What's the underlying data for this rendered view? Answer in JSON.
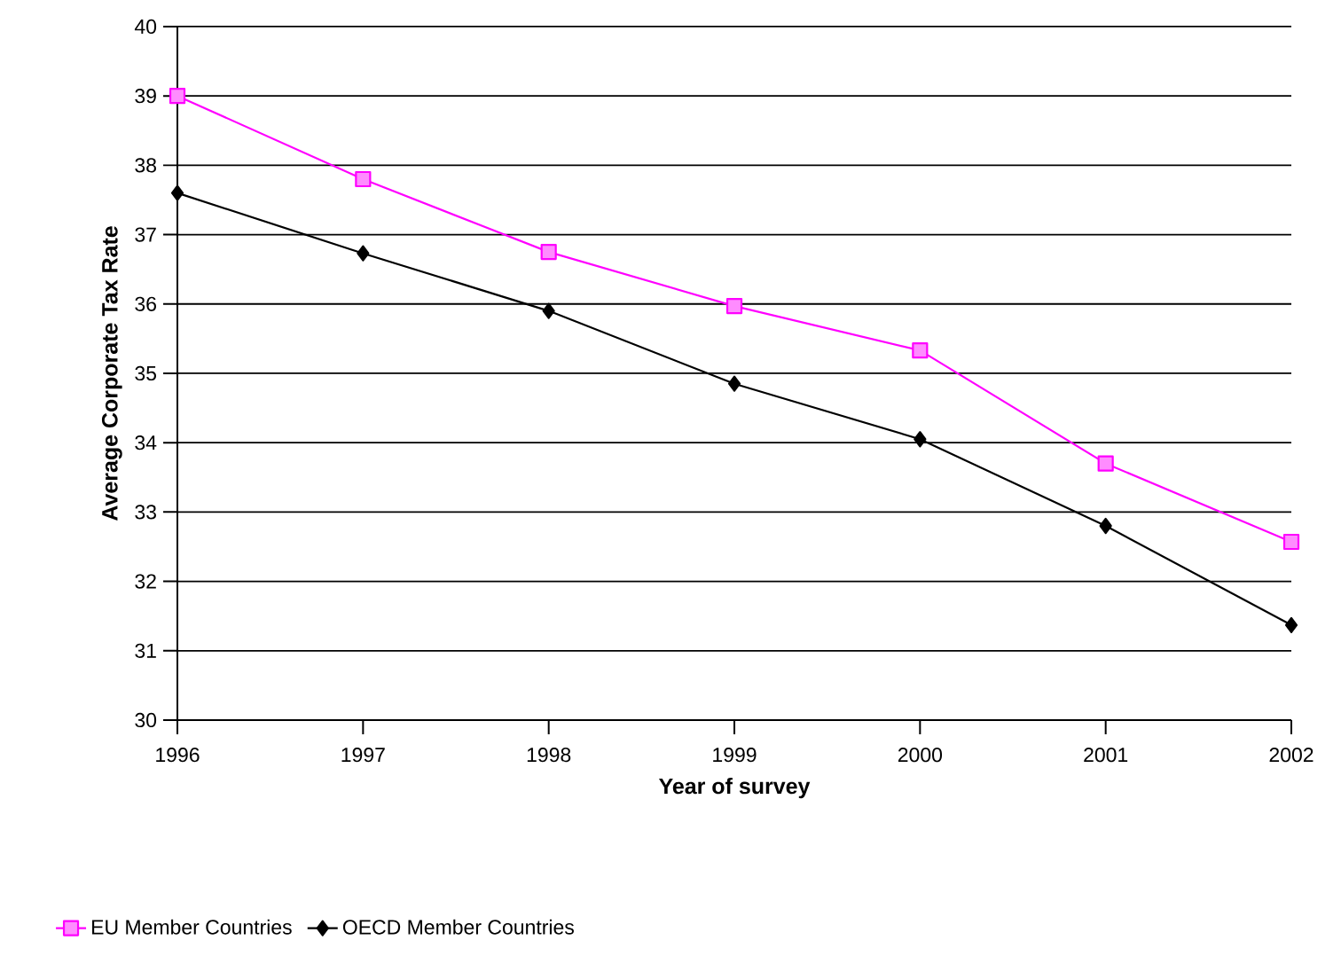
{
  "chart_data": {
    "type": "line",
    "xlabel": "Year of survey",
    "ylabel": "Average Corporate Tax Rate",
    "categories": [
      "1996",
      "1997",
      "1998",
      "1999",
      "2000",
      "2001",
      "2002"
    ],
    "series": [
      {
        "name": "EU Member Countries",
        "color": "#ff00ff",
        "marker": "square",
        "values": [
          39.0,
          37.8,
          36.75,
          35.97,
          35.33,
          33.7,
          32.57
        ]
      },
      {
        "name": "OECD Member Countries",
        "color": "#000000",
        "marker": "diamond",
        "values": [
          37.6,
          36.73,
          35.9,
          34.85,
          34.05,
          32.8,
          31.37
        ]
      }
    ],
    "ylim": [
      30,
      40
    ],
    "yticks": [
      30,
      31,
      32,
      33,
      34,
      35,
      36,
      37,
      38,
      39,
      40
    ],
    "grid": "y",
    "legend": "bottom",
    "line_style": "solid"
  }
}
